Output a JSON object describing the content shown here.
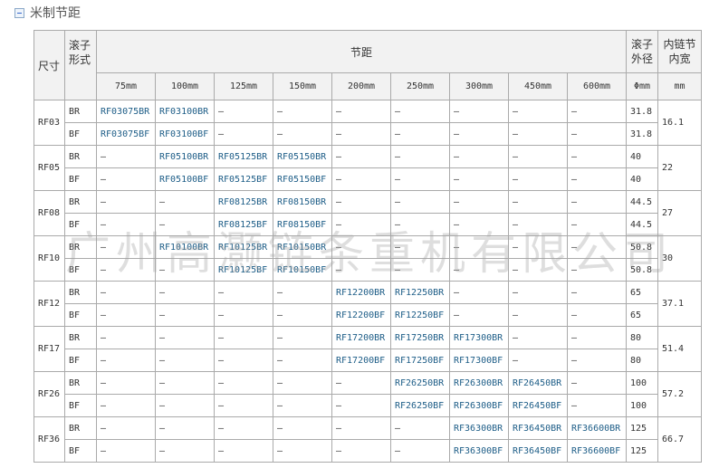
{
  "section": {
    "title": "米制节距",
    "toggle_icon": "collapse-minus-icon"
  },
  "header": {
    "size": "尺寸",
    "roller_type": "滚子形式",
    "pitch": "节距",
    "roller_diameter": "滚子外径",
    "inner_width": "内链节内宽",
    "pitches": [
      "75mm",
      "100mm",
      "125mm",
      "150mm",
      "200mm",
      "250mm",
      "300mm",
      "450mm",
      "600mm"
    ],
    "diameter_unit": "Φmm",
    "width_unit": "mm"
  },
  "rows": [
    {
      "size": "RF03",
      "inner_width": "16.1",
      "types": [
        {
          "type": "BR",
          "cells": [
            "RF03075BR",
            "RF03100BR",
            "—",
            "—",
            "—",
            "—",
            "—",
            "—",
            "—"
          ],
          "diameter": "31.8"
        },
        {
          "type": "BF",
          "cells": [
            "RF03075BF",
            "RF03100BF",
            "—",
            "—",
            "—",
            "—",
            "—",
            "—",
            "—"
          ],
          "diameter": "31.8"
        }
      ]
    },
    {
      "size": "RF05",
      "inner_width": "22",
      "types": [
        {
          "type": "BR",
          "cells": [
            "—",
            "RF05100BR",
            "RF05125BR",
            "RF05150BR",
            "—",
            "—",
            "—",
            "—",
            "—"
          ],
          "diameter": "40"
        },
        {
          "type": "BF",
          "cells": [
            "—",
            "RF05100BF",
            "RF05125BF",
            "RF05150BF",
            "—",
            "—",
            "—",
            "—",
            "—"
          ],
          "diameter": "40"
        }
      ]
    },
    {
      "size": "RF08",
      "inner_width": "27",
      "types": [
        {
          "type": "BR",
          "cells": [
            "—",
            "—",
            "RF08125BR",
            "RF08150BR",
            "—",
            "—",
            "—",
            "—",
            "—"
          ],
          "diameter": "44.5"
        },
        {
          "type": "BF",
          "cells": [
            "—",
            "—",
            "RF08125BF",
            "RF08150BF",
            "—",
            "—",
            "—",
            "—",
            "—"
          ],
          "diameter": "44.5"
        }
      ]
    },
    {
      "size": "RF10",
      "inner_width": "30",
      "types": [
        {
          "type": "BR",
          "cells": [
            "—",
            "RF10100BR",
            "RF10125BR",
            "RF10150BR",
            "—",
            "—",
            "—",
            "—",
            "—"
          ],
          "diameter": "50.8"
        },
        {
          "type": "BF",
          "cells": [
            "—",
            "—",
            "RF10125BF",
            "RF10150BF",
            "—",
            "—",
            "—",
            "—",
            "—"
          ],
          "diameter": "50.8"
        }
      ]
    },
    {
      "size": "RF12",
      "inner_width": "37.1",
      "types": [
        {
          "type": "BR",
          "cells": [
            "—",
            "—",
            "—",
            "—",
            "RF12200BR",
            "RF12250BR",
            "—",
            "—",
            "—"
          ],
          "diameter": "65"
        },
        {
          "type": "BF",
          "cells": [
            "—",
            "—",
            "—",
            "—",
            "RF12200BF",
            "RF12250BF",
            "—",
            "—",
            "—"
          ],
          "diameter": "65"
        }
      ]
    },
    {
      "size": "RF17",
      "inner_width": "51.4",
      "types": [
        {
          "type": "BR",
          "cells": [
            "—",
            "—",
            "—",
            "—",
            "RF17200BR",
            "RF17250BR",
            "RF17300BR",
            "—",
            "—"
          ],
          "diameter": "80"
        },
        {
          "type": "BF",
          "cells": [
            "—",
            "—",
            "—",
            "—",
            "RF17200BF",
            "RF17250BF",
            "RF17300BF",
            "—",
            "—"
          ],
          "diameter": "80"
        }
      ]
    },
    {
      "size": "RF26",
      "inner_width": "57.2",
      "types": [
        {
          "type": "BR",
          "cells": [
            "—",
            "—",
            "—",
            "—",
            "—",
            "RF26250BR",
            "RF26300BR",
            "RF26450BR",
            "—"
          ],
          "diameter": "100"
        },
        {
          "type": "BF",
          "cells": [
            "—",
            "—",
            "—",
            "—",
            "—",
            "RF26250BF",
            "RF26300BF",
            "RF26450BF",
            "—"
          ],
          "diameter": "100"
        }
      ]
    },
    {
      "size": "RF36",
      "inner_width": "66.7",
      "types": [
        {
          "type": "BR",
          "cells": [
            "—",
            "—",
            "—",
            "—",
            "—",
            "—",
            "RF36300BR",
            "RF36450BR",
            "RF36600BR"
          ],
          "diameter": "125"
        },
        {
          "type": "BF",
          "cells": [
            "—",
            "—",
            "—",
            "—",
            "—",
            "—",
            "RF36300BF",
            "RF36450BF",
            "RF36600BF"
          ],
          "diameter": "125"
        }
      ]
    }
  ],
  "watermark": "广州高灏链条重机有限公司",
  "colors": {
    "link": "#1d5d87",
    "header_bg": "#f2f2f2",
    "border": "#aaaaaa"
  }
}
